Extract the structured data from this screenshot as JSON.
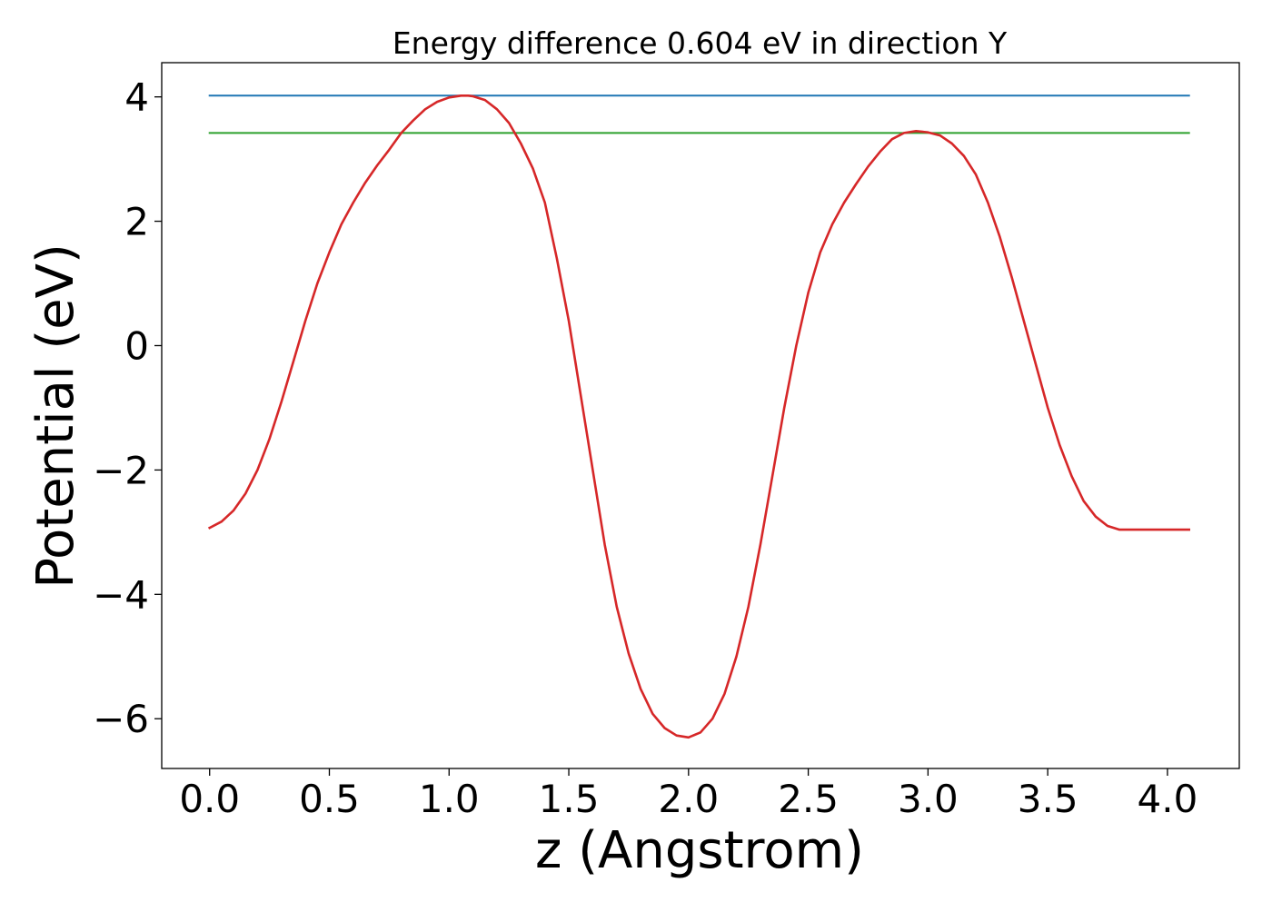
{
  "chart_data": {
    "type": "line",
    "title": "Energy difference 0.604 eV in direction Y",
    "xlabel": "z (Angstrom)",
    "ylabel": "Potential (eV)",
    "xlim": [
      -0.2,
      4.3
    ],
    "ylim": [
      -6.8,
      4.55
    ],
    "grid": false,
    "legend": "none",
    "x_ticks": [
      0.0,
      0.5,
      1.0,
      1.5,
      2.0,
      2.5,
      3.0,
      3.5,
      4.0
    ],
    "x_tick_labels": [
      "0.0",
      "0.5",
      "1.0",
      "1.5",
      "2.0",
      "2.5",
      "3.0",
      "3.5",
      "4.0"
    ],
    "y_ticks": [
      -6,
      -4,
      -2,
      0,
      2,
      4
    ],
    "y_tick_labels": [
      "−6",
      "−4",
      "−2",
      "0",
      "2",
      "4"
    ],
    "series": [
      {
        "color": "#1f77b4",
        "x": [
          0.0,
          4.09
        ],
        "y": [
          4.02,
          4.02
        ]
      },
      {
        "color": "#2ca02c",
        "x": [
          0.0,
          4.09
        ],
        "y": [
          3.42,
          3.42
        ]
      },
      {
        "color": "#d62728",
        "x": [
          0.0,
          0.05,
          0.1,
          0.15,
          0.2,
          0.25,
          0.3,
          0.35,
          0.4,
          0.45,
          0.5,
          0.55,
          0.6,
          0.65,
          0.7,
          0.75,
          0.8,
          0.85,
          0.9,
          0.95,
          1.0,
          1.05,
          1.08,
          1.1,
          1.15,
          1.2,
          1.25,
          1.3,
          1.35,
          1.4,
          1.45,
          1.5,
          1.55,
          1.6,
          1.65,
          1.7,
          1.75,
          1.8,
          1.85,
          1.9,
          1.95,
          2.0,
          2.05,
          2.1,
          2.15,
          2.2,
          2.25,
          2.3,
          2.35,
          2.4,
          2.45,
          2.5,
          2.55,
          2.6,
          2.65,
          2.7,
          2.75,
          2.8,
          2.85,
          2.9,
          2.95,
          3.0,
          3.05,
          3.1,
          3.15,
          3.2,
          3.25,
          3.3,
          3.35,
          3.4,
          3.45,
          3.5,
          3.55,
          3.6,
          3.65,
          3.7,
          3.75,
          3.8,
          3.85,
          3.9,
          3.95,
          4.0,
          4.05,
          4.09
        ],
        "y": [
          -2.93,
          -2.83,
          -2.65,
          -2.38,
          -2.0,
          -1.5,
          -0.9,
          -0.25,
          0.4,
          1.0,
          1.5,
          1.95,
          2.3,
          2.62,
          2.9,
          3.15,
          3.42,
          3.62,
          3.8,
          3.92,
          3.99,
          4.02,
          4.02,
          4.01,
          3.95,
          3.8,
          3.58,
          3.25,
          2.85,
          2.3,
          1.4,
          0.4,
          -0.8,
          -2.0,
          -3.2,
          -4.2,
          -4.95,
          -5.52,
          -5.92,
          -6.15,
          -6.27,
          -6.3,
          -6.22,
          -6.0,
          -5.6,
          -5.0,
          -4.2,
          -3.2,
          -2.1,
          -1.0,
          0.0,
          0.85,
          1.5,
          1.95,
          2.3,
          2.6,
          2.88,
          3.12,
          3.32,
          3.42,
          3.45,
          3.43,
          3.38,
          3.25,
          3.05,
          2.75,
          2.3,
          1.75,
          1.1,
          0.4,
          -0.3,
          -1.0,
          -1.6,
          -2.1,
          -2.5,
          -2.75,
          -2.9,
          -2.96,
          -2.96,
          -2.96,
          -2.96,
          -2.96,
          -2.96,
          -2.96
        ]
      }
    ]
  }
}
